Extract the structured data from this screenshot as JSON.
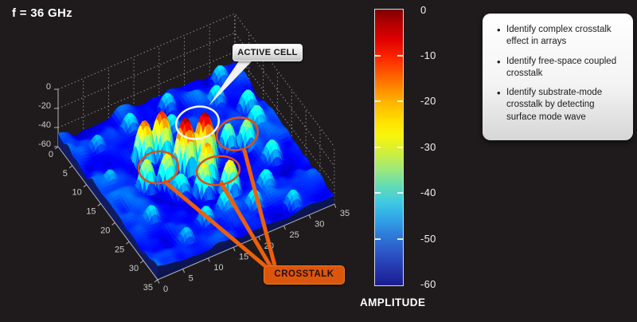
{
  "header": {
    "frequency_label": "f = 36 GHz"
  },
  "plot": {
    "active_cell_label": "ACTIVE CELL",
    "crosstalk_label": "CROSSTALK"
  },
  "colorbar": {
    "title": "AMPLITUDE",
    "tick_labels": [
      "0",
      "-10",
      "-20",
      "-30",
      "-40",
      "-50",
      "-60"
    ]
  },
  "info_panel": {
    "bullets": [
      "Identify complex crosstalk effect in arrays",
      "Identify free-space coupled crosstalk",
      "Identify substrate-mode crosstalk by detecting surface mode wave"
    ]
  },
  "chart_data": {
    "type": "surface",
    "title": "f = 36 GHz",
    "xlabel": "",
    "ylabel": "",
    "zlabel": "AMPLITUDE",
    "x_ticks": [
      0,
      5,
      10,
      15,
      20,
      25,
      30,
      35
    ],
    "y_ticks": [
      0,
      5,
      10,
      15,
      20,
      25,
      30,
      35
    ],
    "z_ticks": [
      0,
      -20,
      -40,
      -60
    ],
    "z_range_db": [
      -60,
      0
    ],
    "colormap": "jet",
    "grid": true,
    "colorbar_ticks_db": [
      0,
      -10,
      -20,
      -30,
      -40,
      -50,
      -60
    ],
    "noise_floor_db": [
      -57,
      -44
    ],
    "peaks": [
      {
        "x": 16.5,
        "y": 16,
        "amp": -1,
        "k": 8,
        "role": "active-cell"
      },
      {
        "x": 17,
        "y": 19.5,
        "amp": -1,
        "k": 8,
        "role": "active-cell"
      },
      {
        "x": 17,
        "y": 8,
        "amp": -24,
        "k": 8,
        "role": "crosstalk"
      },
      {
        "x": 18,
        "y": 11.5,
        "amp": -22,
        "k": 8,
        "role": "crosstalk"
      },
      {
        "x": 23,
        "y": 16,
        "amp": -22,
        "k": 8,
        "role": "crosstalk"
      },
      {
        "x": 25,
        "y": 20,
        "amp": -20,
        "k": 8,
        "role": "crosstalk"
      },
      {
        "x": 16,
        "y": 24.7,
        "amp": -28,
        "k": 8,
        "role": "crosstalk"
      },
      {
        "x": 17.2,
        "y": 27.7,
        "amp": -26,
        "k": 8,
        "role": "crosstalk"
      },
      {
        "x": 11.8,
        "y": 13.9,
        "amp": -8,
        "k": 8,
        "role": "sidelobe"
      },
      {
        "x": 11.4,
        "y": 10.7,
        "amp": -12,
        "k": 8,
        "role": "sidelobe"
      },
      {
        "x": 20.6,
        "y": 17.9,
        "amp": -15,
        "k": 8,
        "role": "sidelobe"
      },
      {
        "x": 5,
        "y": 5,
        "amp": -40,
        "k": 5,
        "role": "background"
      },
      {
        "x": 4,
        "y": 12,
        "amp": -37,
        "k": 5,
        "role": "background"
      },
      {
        "x": 3,
        "y": 20,
        "amp": -38,
        "k": 5,
        "role": "background"
      },
      {
        "x": 6,
        "y": 28,
        "amp": -36,
        "k": 5,
        "role": "background"
      },
      {
        "x": 10,
        "y": 32,
        "amp": -34,
        "k": 5,
        "role": "background"
      },
      {
        "x": 14,
        "y": 31.5,
        "amp": -33,
        "k": 5,
        "role": "background"
      },
      {
        "x": 22,
        "y": 30,
        "amp": -34,
        "k": 5,
        "role": "background"
      },
      {
        "x": 27,
        "y": 26,
        "amp": -36,
        "k": 5,
        "role": "background"
      },
      {
        "x": 30,
        "y": 22,
        "amp": -36,
        "k": 5,
        "role": "background"
      },
      {
        "x": 29,
        "y": 13,
        "amp": -37,
        "k": 5,
        "role": "background"
      },
      {
        "x": 31,
        "y": 8,
        "amp": -40,
        "k": 5,
        "role": "background"
      },
      {
        "x": 24,
        "y": 5,
        "amp": -38,
        "k": 5,
        "role": "background"
      },
      {
        "x": 13,
        "y": 3,
        "amp": -40,
        "k": 5,
        "role": "background"
      },
      {
        "x": 8,
        "y": 18,
        "amp": -36,
        "k": 5,
        "role": "background"
      },
      {
        "x": 21,
        "y": 12.5,
        "amp": -34,
        "k": 5,
        "role": "background"
      },
      {
        "x": 28,
        "y": 17.5,
        "amp": -35,
        "k": 5,
        "role": "background"
      },
      {
        "x": 33,
        "y": 28,
        "amp": -38,
        "k": 5,
        "role": "background"
      },
      {
        "x": 2,
        "y": 31,
        "amp": -38,
        "k": 5,
        "role": "background"
      }
    ]
  }
}
